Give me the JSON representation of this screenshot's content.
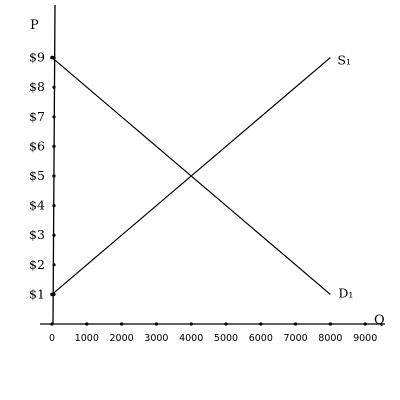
{
  "chart_data": {
    "type": "line",
    "xlabel": "Q",
    "ylabel": "P",
    "xlim": [
      0,
      9000
    ],
    "ylim": [
      0,
      9
    ],
    "x_ticks": [
      0,
      1000,
      2000,
      3000,
      4000,
      5000,
      6000,
      7000,
      8000,
      9000
    ],
    "x_tick_labels": [
      "0",
      "1000",
      "2000",
      "3000",
      "4000",
      "5000",
      "6000",
      "7000",
      "8000",
      "9000"
    ],
    "y_ticks": [
      1,
      2,
      3,
      4,
      5,
      6,
      7,
      8,
      9
    ],
    "y_tick_labels": [
      "$1",
      "$2",
      "$3",
      "$4",
      "$5",
      "$6",
      "$7",
      "$8",
      "$9"
    ],
    "grid": false,
    "legend": "none",
    "series": [
      {
        "name": "S₁",
        "x": [
          0,
          8000
        ],
        "y": [
          1,
          9
        ]
      },
      {
        "name": "D₁",
        "x": [
          0,
          8000
        ],
        "y": [
          9,
          1
        ]
      }
    ]
  }
}
